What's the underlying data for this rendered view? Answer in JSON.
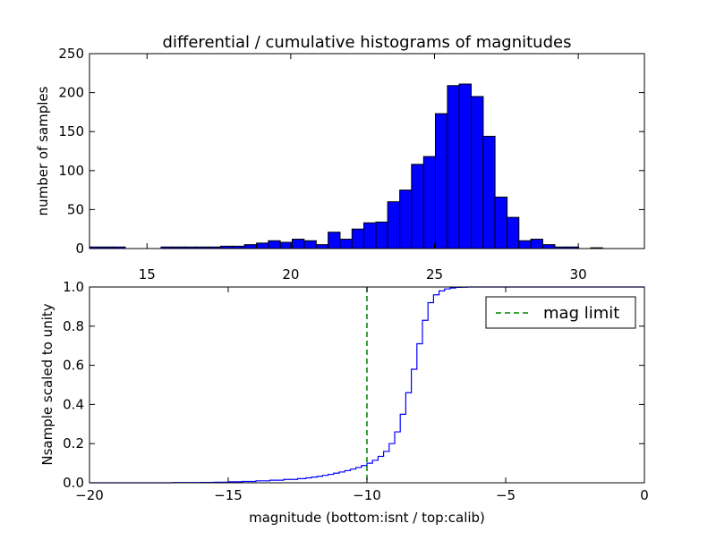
{
  "title": "differential / cumulative histograms of magnitudes",
  "chart_data": [
    {
      "type": "bar",
      "panel": "top",
      "title": "differential / cumulative histograms of magnitudes",
      "ylabel": "number of samples",
      "xlim": [
        13.0,
        32.3
      ],
      "ylim": [
        0,
        250
      ],
      "xticks": [
        15,
        20,
        25,
        30
      ],
      "xtick_labels": [
        "15",
        "20",
        "25",
        "30"
      ],
      "yticks": [
        0,
        50,
        100,
        150,
        200,
        250
      ],
      "ytick_labels": [
        "0",
        "50",
        "100",
        "150",
        "200",
        "250"
      ],
      "tick_side_x": "top",
      "grid": false,
      "color": "#0000ff",
      "bin_width": 0.415,
      "bin_left_edges": [
        13.0,
        13.41,
        13.83,
        14.24,
        14.66,
        15.07,
        15.49,
        15.9,
        16.32,
        16.73,
        17.15,
        17.56,
        17.98,
        18.39,
        18.81,
        19.22,
        19.64,
        20.05,
        20.47,
        20.88,
        21.3,
        21.71,
        22.13,
        22.54,
        22.96,
        23.37,
        23.79,
        24.2,
        24.62,
        25.03,
        25.45,
        25.86,
        26.28,
        26.69,
        27.11,
        27.52,
        27.94,
        28.35,
        28.77,
        29.18,
        29.6,
        30.01,
        30.43,
        30.84,
        31.26,
        31.67
      ],
      "counts": [
        2,
        2,
        2,
        0,
        0,
        0,
        2,
        2,
        2,
        2,
        2,
        3,
        3,
        5,
        7,
        10,
        8,
        12,
        10,
        5,
        21,
        12,
        25,
        33,
        34,
        60,
        75,
        108,
        118,
        173,
        209,
        211,
        195,
        144,
        66,
        40,
        10,
        12,
        5,
        2,
        2,
        0,
        1,
        0,
        0,
        0
      ]
    },
    {
      "type": "line",
      "panel": "bottom",
      "xlabel": "magnitude (bottom:isnt / top:calib)",
      "ylabel": "Nsample scaled to unity",
      "xlim": [
        -20,
        0
      ],
      "ylim": [
        0.0,
        1.0
      ],
      "xticks": [
        -20,
        -15,
        -10,
        -5,
        0
      ],
      "xtick_labels": [
        "−20",
        "−15",
        "−10",
        "−5",
        "0"
      ],
      "yticks": [
        0.0,
        0.2,
        0.4,
        0.6,
        0.8,
        1.0
      ],
      "ytick_labels": [
        "0.0",
        "0.2",
        "0.4",
        "0.6",
        "0.8",
        "1.0"
      ],
      "grid": false,
      "legend_position": "top-right",
      "series": [
        {
          "style": "steps",
          "color": "#0000ff",
          "x": [
            -20.0,
            -17.0,
            -16.0,
            -15.5,
            -15.0,
            -14.5,
            -14.0,
            -13.5,
            -13.0,
            -12.5,
            -12.2,
            -12.0,
            -11.8,
            -11.6,
            -11.4,
            -11.2,
            -11.0,
            -10.8,
            -10.6,
            -10.4,
            -10.2,
            -10.0,
            -9.8,
            -9.6,
            -9.4,
            -9.2,
            -9.0,
            -8.8,
            -8.6,
            -8.4,
            -8.2,
            -8.0,
            -7.8,
            -7.6,
            -7.4,
            -7.2,
            -7.0,
            -6.8,
            -6.6,
            -6.4,
            -6.2,
            -6.0,
            0.0
          ],
          "y": [
            0.0,
            0.001,
            0.002,
            0.003,
            0.005,
            0.007,
            0.01,
            0.013,
            0.017,
            0.021,
            0.025,
            0.029,
            0.033,
            0.038,
            0.043,
            0.049,
            0.055,
            0.062,
            0.07,
            0.078,
            0.088,
            0.1,
            0.115,
            0.135,
            0.16,
            0.2,
            0.26,
            0.35,
            0.46,
            0.58,
            0.71,
            0.83,
            0.92,
            0.96,
            0.98,
            0.99,
            0.995,
            0.998,
            0.999,
            1.0,
            1.0,
            1.0,
            1.0
          ]
        },
        {
          "name": "mag limit",
          "style": "dashed-vertical",
          "color": "#008000",
          "x": -10.0
        }
      ]
    }
  ]
}
